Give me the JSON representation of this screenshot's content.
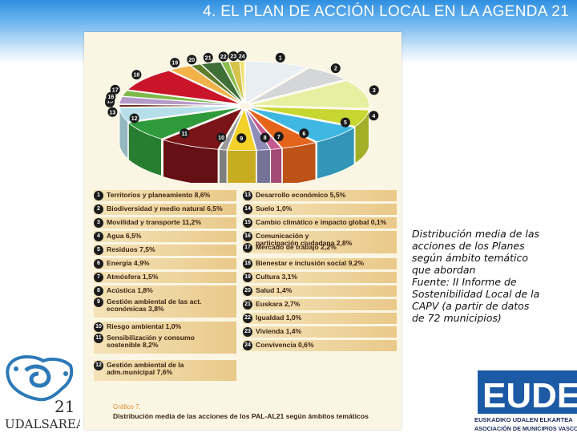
{
  "page": {
    "title": "4. EL PLAN DE ACCIÓN LOCAL EN LA AGENDA 21"
  },
  "side_note": {
    "lines": [
      "Distribución media de las",
      "acciones de los Planes",
      "según ámbito temático",
      "que abordan",
      "Fuente: II Informe de",
      "Sostenibilidad Local de la",
      "CAPV (a partir de datos",
      "de 72 municipios)"
    ]
  },
  "figure": {
    "caption_number": "Gráfico 7.",
    "caption_text": "Distribución media de las acciones de los PAL-AL21 según ámbitos temáticos"
  },
  "logos": {
    "left": {
      "number": "21",
      "wordmark": "UDALSAREA"
    },
    "right": {
      "wordmark": "EUDEL",
      "line1": "EUSKADIKO UDALEN ELKARTEA",
      "line2": "ASOCIACIÓN DE MUNICIPIOS VASCOS"
    }
  },
  "chart_data": {
    "type": "pie",
    "style": "3d-exploded",
    "title": "",
    "legend_placement": "bottom",
    "slices": [
      {
        "n": "1",
        "label": "Territorios y planeamiento 8,6%",
        "value": 8.6,
        "color": "#e9eef2"
      },
      {
        "n": "2",
        "label": "Biodiversidad y medio natural 6,5%",
        "value": 6.5,
        "color": "#d4d6d8"
      },
      {
        "n": "3",
        "label": "Movilidad y transporte 11,2%",
        "value": 11.2,
        "color": "#e6f0a0"
      },
      {
        "n": "4",
        "label": "Agua 6,5%",
        "value": 6.5,
        "color": "#c7d630"
      },
      {
        "n": "5",
        "label": "Residuos 7,5%",
        "value": 7.5,
        "color": "#3eb7e2"
      },
      {
        "n": "6",
        "label": "Energía 4,9%",
        "value": 4.9,
        "color": "#e5641c"
      },
      {
        "n": "7",
        "label": "Atmósfera 1,5%",
        "value": 1.5,
        "color": "#c6598e"
      },
      {
        "n": "8",
        "label": "Acústica 1,8%",
        "value": 1.8,
        "color": "#8f8cb8"
      },
      {
        "n": "9",
        "label": "Gestión ambiental de las act.\neconómicas 3,8%",
        "value": 3.8,
        "color": "#f3d128"
      },
      {
        "n": "10",
        "label": "Riesgo ambiental 1,0%",
        "value": 1.0,
        "color": "#9a9a9a"
      },
      {
        "n": "11",
        "label": "Sensibilización y consumo\nsostenible 8,2%",
        "value": 8.2,
        "color": "#7a1418"
      },
      {
        "n": "12",
        "label": "Gestión ambiental de la\nadm.municipal 7,6%",
        "value": 7.6,
        "color": "#2f9a3c"
      },
      {
        "n": "13",
        "label": "Desarrollo económico 5,5%",
        "value": 5.5,
        "color": "#b6dfe9"
      },
      {
        "n": "14",
        "label": "Suelo 1,0%",
        "value": 1.0,
        "color": "#6a2f1c"
      },
      {
        "n": "15",
        "label": "Cambio climático e impacto global 0,1%",
        "value": 0.1,
        "color": "#e6a91a"
      },
      {
        "n": "16",
        "label": "Comunicación y\nparticipación ciudadana 2,8%",
        "value": 2.8,
        "color": "#b49bc8"
      },
      {
        "n": "17",
        "label": "Mercado de trabajo 2,2%",
        "value": 2.2,
        "color": "#7eb84a"
      },
      {
        "n": "18",
        "label": "Bienestar e inclusión social 9,2%",
        "value": 9.2,
        "color": "#c9142a"
      },
      {
        "n": "19",
        "label": "Cultura 3,1%",
        "value": 3.1,
        "color": "#f2b24a"
      },
      {
        "n": "20",
        "label": "Salud 1,4%",
        "value": 1.4,
        "color": "#5f7d2a"
      },
      {
        "n": "21",
        "label": "Euskara 2,7%",
        "value": 2.7,
        "color": "#3f6f37"
      },
      {
        "n": "22",
        "label": "Igualdad 1,0%",
        "value": 1.0,
        "color": "#8bbf4e"
      },
      {
        "n": "23",
        "label": "Vivienda 1,4%",
        "value": 1.4,
        "color": "#d6c34a"
      },
      {
        "n": "24",
        "label": "Convivencia 0,6%",
        "value": 0.6,
        "color": "#f0e06a"
      }
    ]
  }
}
